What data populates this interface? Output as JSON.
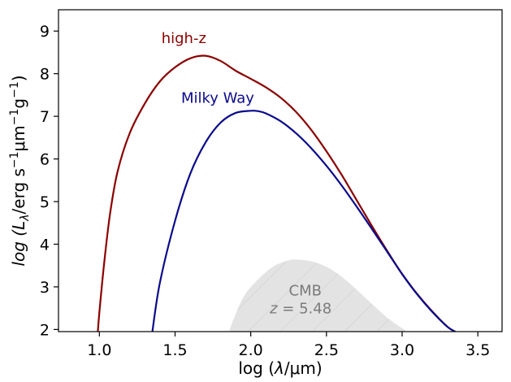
{
  "chart_data": {
    "type": "line",
    "xlabel": {
      "pre": "log (",
      "var": "λ",
      "post": "/μm)"
    },
    "ylabel": {
      "pre": "log (",
      "var": "L",
      "sub": "λ",
      "post": "/erg s",
      "sup1": "−1",
      "mid": "μm",
      "sup2": "−1",
      "end": "g",
      "sup3": "−1",
      "close": ")"
    },
    "xlim": [
      0.73,
      3.66
    ],
    "ylim": [
      1.95,
      9.5
    ],
    "xticks": [
      1.0,
      1.5,
      2.0,
      2.5,
      3.0,
      3.5
    ],
    "yticks": [
      2,
      3,
      4,
      5,
      6,
      7,
      8,
      9
    ],
    "xtick_labels": [
      "1.0",
      "1.5",
      "2.0",
      "2.5",
      "3.0",
      "3.5"
    ],
    "ytick_labels": [
      "2",
      "3",
      "4",
      "5",
      "6",
      "7",
      "8",
      "9"
    ],
    "series": [
      {
        "name": "high-z",
        "color": "#8b0000",
        "x": [
          0.99,
          1.0,
          1.03,
          1.07,
          1.12,
          1.2,
          1.3,
          1.4,
          1.5,
          1.6,
          1.7,
          1.8,
          1.9,
          2.0,
          2.1,
          2.2,
          2.3,
          2.4,
          2.5,
          2.6,
          2.7,
          2.8,
          2.9,
          3.0,
          3.1,
          3.2,
          3.3,
          3.35
        ],
        "y": [
          1.95,
          2.4,
          3.5,
          4.7,
          5.7,
          6.6,
          7.3,
          7.82,
          8.15,
          8.36,
          8.42,
          8.3,
          8.07,
          7.88,
          7.68,
          7.43,
          7.1,
          6.68,
          6.18,
          5.63,
          5.03,
          4.43,
          3.85,
          3.3,
          2.83,
          2.42,
          2.06,
          1.95
        ]
      },
      {
        "name": "Milky Way",
        "color": "#0a0a8c",
        "x": [
          1.35,
          1.4,
          1.5,
          1.6,
          1.7,
          1.8,
          1.9,
          2.0,
          2.05,
          2.1,
          2.2,
          2.3,
          2.4,
          2.5,
          2.6,
          2.7,
          2.8,
          2.9,
          3.0,
          3.1,
          3.2,
          3.3,
          3.35
        ],
        "y": [
          1.95,
          3.1,
          4.55,
          5.65,
          6.38,
          6.85,
          7.08,
          7.13,
          7.12,
          7.07,
          6.88,
          6.6,
          6.25,
          5.84,
          5.38,
          4.88,
          4.36,
          3.83,
          3.3,
          2.82,
          2.41,
          2.06,
          1.95
        ]
      }
    ],
    "shaded": {
      "name": "CMB",
      "annotation_line1": "CMB",
      "annotation_var": "z",
      "annotation_value": " = 5.48",
      "color": "#e3e3e3",
      "x": [
        1.86,
        1.95,
        2.05,
        2.15,
        2.25,
        2.3,
        2.4,
        2.5,
        2.6,
        2.7,
        2.8,
        2.9,
        3.0,
        3.02
      ],
      "y": [
        2.0,
        2.75,
        3.18,
        3.48,
        3.62,
        3.64,
        3.6,
        3.47,
        3.24,
        2.93,
        2.6,
        2.28,
        2.03,
        2.0
      ]
    },
    "grid": false,
    "legend": "inline labels"
  }
}
